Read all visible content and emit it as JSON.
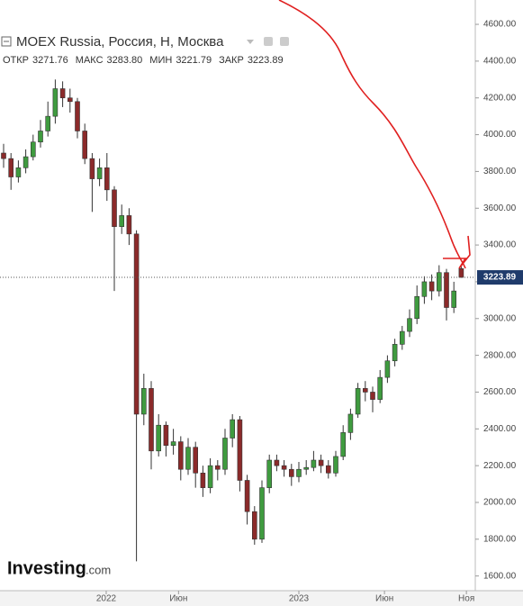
{
  "chart_data": {
    "type": "candlestick",
    "title": "MOEX Russia, Россия, Н, Москва",
    "header_labels": [
      "ОТКР",
      "МАКС",
      "МИН",
      "ЗАКР"
    ],
    "header_values": [
      "3271.76",
      "3283.80",
      "3221.79",
      "3223.89"
    ],
    "last_price_label": "3223.89",
    "logo": "Investing",
    "logo_suffix": ".com",
    "up_color": "#3f9b3f",
    "down_color": "#8b2a2a",
    "open": [
      3900,
      3870,
      3770,
      3820,
      3880,
      3960,
      4020,
      4100,
      4250,
      4200,
      4180,
      4020,
      3870,
      3760,
      3820,
      3700,
      3500,
      3560,
      3460,
      2480,
      2620,
      2280,
      2420,
      2310,
      2330,
      2180,
      2300,
      2160,
      2080,
      2200,
      2180,
      2350,
      2450,
      2120,
      1950,
      1800,
      2080,
      2230,
      2200,
      2180,
      2140,
      2180,
      2190,
      2230,
      2200,
      2160,
      2250,
      2380,
      2480,
      2620,
      2600,
      2560,
      2680,
      2770,
      2860,
      2930,
      3000,
      3120,
      3200,
      3150,
      3250,
      3060,
      3271.76
    ],
    "high": [
      3950,
      3900,
      3860,
      3920,
      4000,
      4080,
      4180,
      4300,
      4290,
      4250,
      4200,
      4060,
      3900,
      3870,
      3900,
      3720,
      3620,
      3600,
      3480,
      2700,
      2660,
      2480,
      2440,
      2400,
      2360,
      2350,
      2330,
      2200,
      2240,
      2230,
      2400,
      2480,
      2470,
      2150,
      1980,
      2120,
      2260,
      2260,
      2230,
      2210,
      2220,
      2230,
      2280,
      2260,
      2230,
      2280,
      2420,
      2510,
      2650,
      2660,
      2630,
      2720,
      2800,
      2890,
      2960,
      3050,
      3180,
      3230,
      3240,
      3290,
      3270,
      3200,
      3283.8
    ],
    "low": [
      3820,
      3700,
      3740,
      3790,
      3860,
      3930,
      3990,
      4060,
      4150,
      4120,
      3980,
      3840,
      3580,
      3720,
      3640,
      3150,
      3460,
      3400,
      1680,
      2420,
      2180,
      2250,
      2250,
      2260,
      2120,
      2150,
      2080,
      2030,
      2050,
      2120,
      2150,
      2300,
      2060,
      1880,
      1770,
      1780,
      2050,
      2170,
      2140,
      2090,
      2110,
      2150,
      2170,
      2160,
      2130,
      2140,
      2230,
      2340,
      2460,
      2550,
      2490,
      2540,
      2650,
      2740,
      2830,
      2900,
      2970,
      3080,
      3100,
      3120,
      2990,
      3030,
      3221.79
    ],
    "close": [
      3870,
      3770,
      3820,
      3880,
      3960,
      4020,
      4100,
      4250,
      4200,
      4180,
      4020,
      3870,
      3760,
      3820,
      3700,
      3500,
      3560,
      3460,
      2480,
      2620,
      2280,
      2420,
      2310,
      2330,
      2180,
      2300,
      2160,
      2080,
      2200,
      2180,
      2350,
      2450,
      2120,
      1950,
      1800,
      2080,
      2230,
      2200,
      2180,
      2140,
      2180,
      2190,
      2230,
      2200,
      2160,
      2250,
      2380,
      2480,
      2620,
      2600,
      2560,
      2680,
      2770,
      2860,
      2930,
      3000,
      3120,
      3200,
      3150,
      3250,
      3060,
      3150,
      3223.89
    ],
    "ylim": [
      1520,
      4610
    ],
    "yticks": [
      {
        "value": 1600,
        "label": "1600.00"
      },
      {
        "value": 1800,
        "label": "1800.00"
      },
      {
        "value": 2000,
        "label": "2000.00"
      },
      {
        "value": 2200,
        "label": "2200.00"
      },
      {
        "value": 2400,
        "label": "2400.00"
      },
      {
        "value": 2600,
        "label": "2600.00"
      },
      {
        "value": 2800,
        "label": "2800.00"
      },
      {
        "value": 3000,
        "label": "3000.00"
      },
      {
        "value": 3200,
        "label": "3200.00"
      },
      {
        "value": 3400,
        "label": "3400.00"
      },
      {
        "value": 3600,
        "label": "3600.00"
      },
      {
        "value": 3800,
        "label": "3800.00"
      },
      {
        "value": 4000,
        "label": "4000.00"
      },
      {
        "value": 4200,
        "label": "4200.00"
      },
      {
        "value": 4400,
        "label": "4400.00"
      },
      {
        "value": 4600,
        "label": "4600.00"
      }
    ],
    "xticks": [
      {
        "value": 13.9,
        "label": "2022"
      },
      {
        "value": 23.7,
        "label": "Июн"
      },
      {
        "value": 40,
        "label": "2023"
      },
      {
        "value": 51.6,
        "label": "Июн"
      },
      {
        "value": 62.7,
        "label": "Ноя"
      }
    ]
  }
}
